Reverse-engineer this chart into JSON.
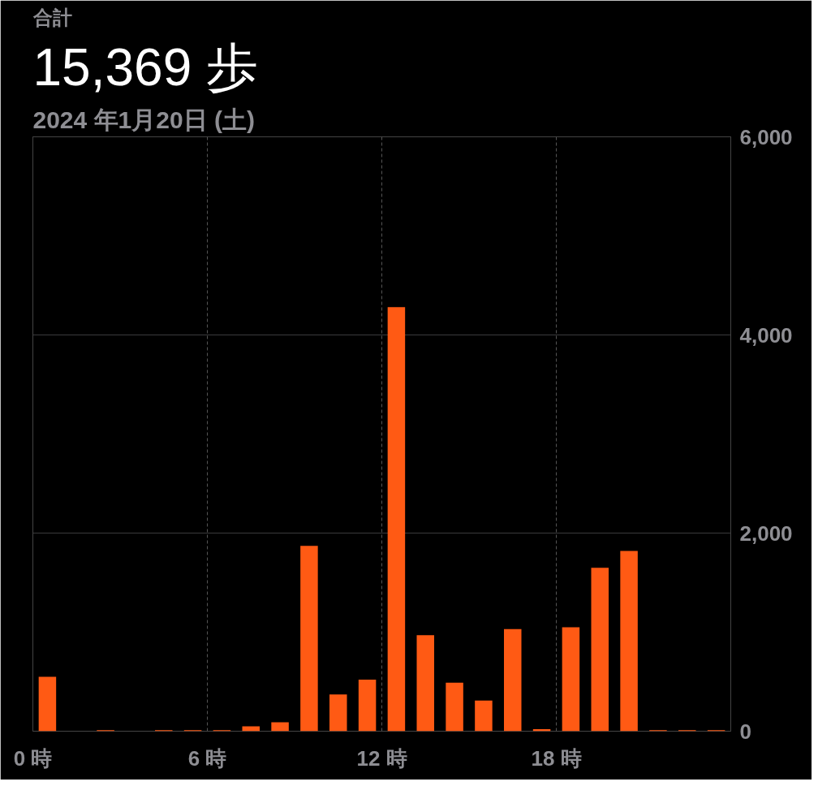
{
  "chart_data": {
    "type": "bar",
    "title": "15,369 歩",
    "subtitle": "2024 年1月20日 (土)",
    "annotations": [
      "合計"
    ],
    "x": [
      0.5,
      1.5,
      2.5,
      3.5,
      4.5,
      5.5,
      6.5,
      7.5,
      8.5,
      9.5,
      10.5,
      11.5,
      12.5,
      13.5,
      14.5,
      15.5,
      16.5,
      17.5,
      18.5,
      19.5,
      20.5,
      21.5,
      22.5,
      23.5
    ],
    "values": [
      550,
      0,
      10,
      0,
      10,
      10,
      10,
      50,
      90,
      1870,
      370,
      520,
      4280,
      970,
      490,
      310,
      1030,
      20,
      1050,
      1650,
      1820,
      10,
      10,
      10
    ],
    "color": "#ff5a14",
    "xlim": [
      0,
      24
    ],
    "xticks": [
      {
        "value": 0,
        "label": "0 時"
      },
      {
        "value": 6,
        "label": "6 時"
      },
      {
        "value": 12,
        "label": "12 時"
      },
      {
        "value": 18,
        "label": "18 時"
      }
    ],
    "ylim": [
      0,
      6000
    ],
    "yticks": [
      {
        "value": 0,
        "label": "0"
      },
      {
        "value": 2000,
        "label": "2,000"
      },
      {
        "value": 4000,
        "label": "4,000"
      },
      {
        "value": 6000,
        "label": "6,000"
      }
    ],
    "grid": true
  }
}
